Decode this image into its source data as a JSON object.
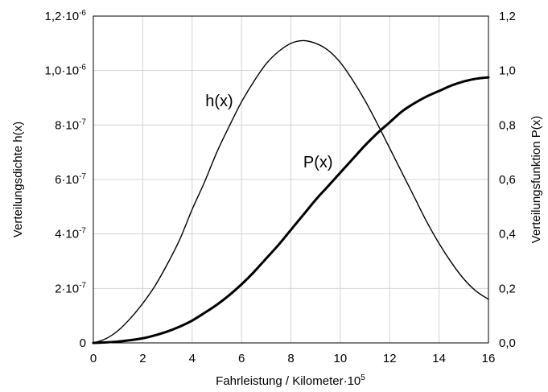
{
  "chart_data": {
    "type": "line",
    "xlabel": "Fahrleistung / Kilometer·10",
    "xlabel_exponent": "5",
    "ylabel_left": "Verteilungsdichte h(x)",
    "ylabel_right": "Verteilungsfunktion P(x)",
    "xlim": [
      0,
      16
    ],
    "ylim_left": [
      0,
      1.2e-06
    ],
    "ylim_right": [
      0,
      1.2
    ],
    "grid": true,
    "x_ticks": [
      "0",
      "2",
      "4",
      "6",
      "8",
      "10",
      "12",
      "14",
      "16"
    ],
    "y_left_ticks": [
      {
        "base": "0",
        "exp": ""
      },
      {
        "base": "2·10",
        "exp": "-7"
      },
      {
        "base": "4·10",
        "exp": "-7"
      },
      {
        "base": "6·10",
        "exp": "-7"
      },
      {
        "base": "8·10",
        "exp": "-7"
      },
      {
        "base": "1,0·10",
        "exp": "-6"
      },
      {
        "base": "1,2·10",
        "exp": "-6"
      }
    ],
    "y_right_ticks": [
      "0,0",
      "0,2",
      "0,4",
      "0,6",
      "0,8",
      "1,0",
      "1,2"
    ],
    "series": [
      {
        "name": "h(x)",
        "axis": "left",
        "line": "thin",
        "x": [
          0,
          0.5,
          1,
          1.5,
          2,
          2.5,
          3,
          3.5,
          4,
          4.5,
          5,
          5.5,
          6,
          6.5,
          7,
          7.5,
          8,
          8.5,
          9,
          9.5,
          10,
          10.5,
          11,
          11.5,
          12,
          12.5,
          13,
          13.5,
          14,
          14.5,
          15,
          15.5,
          16
        ],
        "values": [
          0,
          1.5e-08,
          4.5e-08,
          9e-08,
          1.45e-07,
          2.1e-07,
          2.9e-07,
          3.8e-07,
          4.9e-07,
          5.9e-07,
          7e-07,
          7.95e-07,
          8.85e-07,
          9.6e-07,
          1.025e-06,
          1.07e-06,
          1.1e-06,
          1.11e-06,
          1.1e-06,
          1.075e-06,
          1.03e-06,
          9.65e-07,
          8.9e-07,
          8.05e-07,
          7.15e-07,
          6.25e-07,
          5.35e-07,
          4.45e-07,
          3.65e-07,
          2.95e-07,
          2.35e-07,
          1.9e-07,
          1.6e-07
        ]
      },
      {
        "name": "P(x)",
        "axis": "right",
        "line": "thick",
        "x": [
          0,
          0.5,
          1,
          1.5,
          2,
          2.5,
          3,
          3.5,
          4,
          4.5,
          5,
          5.5,
          6,
          6.5,
          7,
          7.5,
          8,
          8.5,
          9,
          9.5,
          10,
          10.5,
          11,
          11.5,
          12,
          12.5,
          13,
          13.5,
          14,
          14.5,
          15,
          15.5,
          16
        ],
        "values": [
          0,
          0.002,
          0.005,
          0.01,
          0.017,
          0.028,
          0.042,
          0.06,
          0.082,
          0.11,
          0.14,
          0.175,
          0.215,
          0.26,
          0.31,
          0.36,
          0.415,
          0.47,
          0.525,
          0.575,
          0.625,
          0.675,
          0.725,
          0.77,
          0.81,
          0.85,
          0.88,
          0.905,
          0.925,
          0.945,
          0.96,
          0.97,
          0.975
        ]
      }
    ],
    "annotations": [
      {
        "text": "h(x)",
        "x": 5.1,
        "y_left": 8.9e-07
      },
      {
        "text": "P(x)",
        "x": 9.1,
        "y_right": 0.665
      }
    ]
  }
}
